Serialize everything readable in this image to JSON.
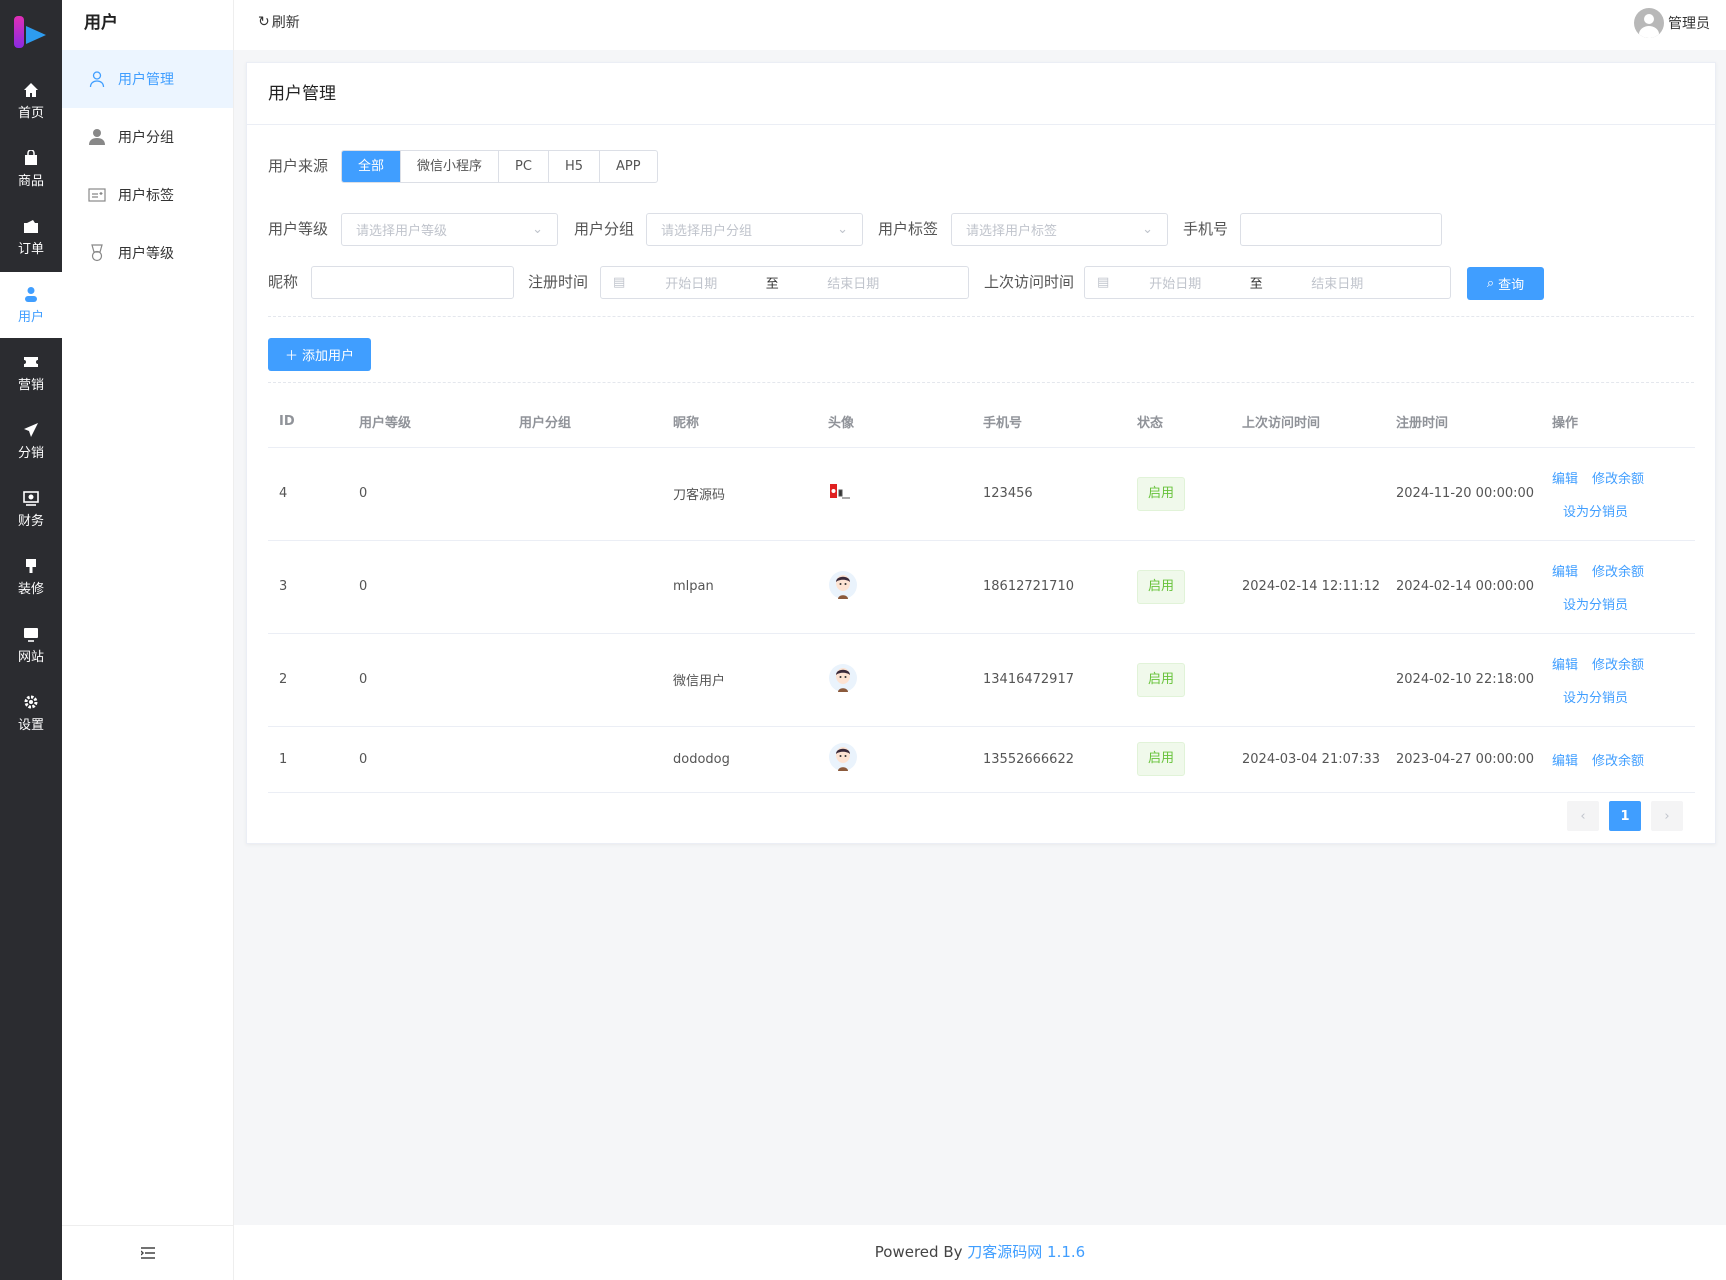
{
  "rail": {
    "items": [
      {
        "label": "首页",
        "icon": "home-icon"
      },
      {
        "label": "商品",
        "icon": "bag-icon"
      },
      {
        "label": "订单",
        "icon": "wallet-icon"
      },
      {
        "label": "用户",
        "icon": "user-icon",
        "active": true
      },
      {
        "label": "营销",
        "icon": "ticket-icon"
      },
      {
        "label": "分销",
        "icon": "send-icon"
      },
      {
        "label": "财务",
        "icon": "finance-icon"
      },
      {
        "label": "装修",
        "icon": "brush-icon"
      },
      {
        "label": "网站",
        "icon": "monitor-icon"
      },
      {
        "label": "设置",
        "icon": "gear-icon"
      }
    ]
  },
  "sidebar": {
    "title": "用户",
    "items": [
      {
        "label": "用户管理",
        "active": true
      },
      {
        "label": "用户分组"
      },
      {
        "label": "用户标签"
      },
      {
        "label": "用户等级"
      }
    ]
  },
  "header": {
    "refresh": "刷新",
    "user": "管理员"
  },
  "card": {
    "title": "用户管理"
  },
  "filters": {
    "source_label": "用户来源",
    "sources": [
      "全部",
      "微信小程序",
      "PC",
      "H5",
      "APP"
    ],
    "level_label": "用户等级",
    "level_placeholder": "请选择用户等级",
    "group_label": "用户分组",
    "group_placeholder": "请选择用户分组",
    "tag_label": "用户标签",
    "tag_placeholder": "请选择用户标签",
    "phone_label": "手机号",
    "phone_value": "",
    "nickname_label": "昵称",
    "nickname_value": "",
    "reg_label": "注册时间",
    "last_label": "上次访问时间",
    "start_placeholder": "开始日期",
    "end_placeholder": "结束日期",
    "range_sep": "至",
    "query": "查询"
  },
  "add_user": "添加用户",
  "table": {
    "columns": [
      "ID",
      "用户等级",
      "用户分组",
      "昵称",
      "头像",
      "手机号",
      "状态",
      "上次访问时间",
      "注册时间",
      "操作"
    ],
    "rows": [
      {
        "id": "4",
        "level": "0",
        "group": "",
        "nickname": "刀客源码",
        "avatar": "logo",
        "phone": "123456",
        "status": "启用",
        "last": "",
        "reg": "2024-11-20 00:00:00"
      },
      {
        "id": "3",
        "level": "0",
        "group": "",
        "nickname": "mlpan",
        "avatar": "face",
        "phone": "18612721710",
        "status": "启用",
        "last": "2024-02-14 12:11:12",
        "reg": "2024-02-14 00:00:00"
      },
      {
        "id": "2",
        "level": "0",
        "group": "",
        "nickname": "微信用户",
        "avatar": "face",
        "phone": "13416472917",
        "status": "启用",
        "last": "",
        "reg": "2024-02-10 22:18:00"
      },
      {
        "id": "1",
        "level": "0",
        "group": "",
        "nickname": "dododog",
        "avatar": "face",
        "phone": "13552666622",
        "status": "启用",
        "last": "2024-03-04 21:07:33",
        "reg": "2023-04-27 00:00:00"
      }
    ],
    "actions": {
      "edit": "编辑",
      "balance": "修改余额",
      "distributor": "设为分销员"
    }
  },
  "pagination": {
    "current": "1",
    "prev": "‹",
    "next": "›"
  },
  "footer": {
    "prefix": "Powered By",
    "link": "刀客源码网 1.1.6"
  },
  "colors": {
    "primary": "#409eff",
    "rail": "#2b2c30",
    "success": "#67c23a"
  }
}
